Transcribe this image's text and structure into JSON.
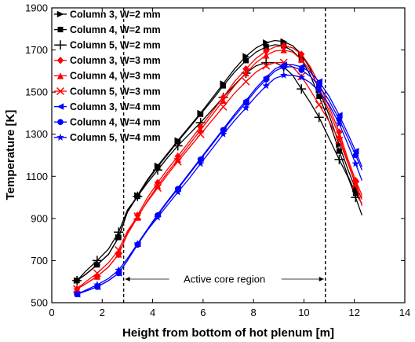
{
  "chart_data": {
    "type": "line",
    "xlabel": "Height from bottom of hot plenum [m]",
    "ylabel": "Temperature [K]",
    "xlim": [
      0,
      14
    ],
    "ylim": [
      500,
      1900
    ],
    "xticks": [
      0,
      2,
      4,
      6,
      8,
      10,
      12,
      14
    ],
    "yticks": [
      500,
      700,
      900,
      1100,
      1300,
      1500,
      1700,
      1900
    ],
    "xtick_labels": [
      "0",
      "2",
      "4",
      "6",
      "8",
      "10",
      "12",
      "14"
    ],
    "ytick_labels": [
      "500",
      "700",
      "900",
      "1100",
      "1300",
      "1500",
      "1700",
      "1900"
    ],
    "grid": false,
    "legend_position": "top-left",
    "x": [
      1.0,
      1.35,
      1.8,
      2.25,
      2.65,
      3.0,
      3.4,
      3.8,
      4.2,
      4.6,
      5.0,
      5.45,
      5.9,
      6.35,
      6.8,
      7.25,
      7.7,
      8.1,
      8.5,
      8.85,
      9.2,
      9.55,
      9.9,
      10.25,
      10.6,
      11.0,
      11.4,
      11.75,
      12.05,
      12.3
    ],
    "series": [
      {
        "name": "Column 3, W=2 mm",
        "color": "#000000",
        "marker": "triangle-right",
        "values": [
          605,
          635,
          680,
          730,
          810,
          930,
          1010,
          1085,
          1150,
          1210,
          1270,
          1335,
          1400,
          1470,
          1540,
          1610,
          1670,
          1710,
          1735,
          1745,
          1740,
          1720,
          1680,
          1610,
          1510,
          1390,
          1250,
          1130,
          1040,
          1000
        ]
      },
      {
        "name": "Column 4, W=2 mm",
        "color": "#000000",
        "marker": "square",
        "values": [
          605,
          635,
          680,
          730,
          810,
          930,
          1005,
          1080,
          1145,
          1205,
          1265,
          1330,
          1395,
          1460,
          1530,
          1595,
          1650,
          1690,
          1715,
          1725,
          1720,
          1695,
          1655,
          1580,
          1480,
          1360,
          1220,
          1100,
          1020,
          970
        ]
      },
      {
        "name": "Column 5, W=2 mm",
        "color": "#000000",
        "marker": "plus",
        "values": [
          605,
          650,
          700,
          755,
          835,
          940,
          1005,
          1070,
          1130,
          1190,
          1245,
          1300,
          1355,
          1415,
          1475,
          1535,
          1590,
          1625,
          1640,
          1640,
          1620,
          1580,
          1515,
          1450,
          1380,
          1280,
          1180,
          1095,
          1000,
          915
        ]
      },
      {
        "name": "Column 3, W=3 mm",
        "color": "#ff0000",
        "marker": "diamond",
        "values": [
          565,
          590,
          625,
          670,
          730,
          830,
          915,
          1000,
          1070,
          1135,
          1195,
          1265,
          1335,
          1405,
          1475,
          1550,
          1610,
          1660,
          1695,
          1715,
          1720,
          1710,
          1680,
          1620,
          1540,
          1430,
          1310,
          1180,
          1080,
          1010
        ]
      },
      {
        "name": "Column 4, W=3 mm",
        "color": "#ff0000",
        "marker": "triangle-up",
        "values": [
          565,
          590,
          625,
          670,
          730,
          825,
          905,
          985,
          1055,
          1120,
          1180,
          1250,
          1320,
          1390,
          1460,
          1530,
          1590,
          1640,
          1675,
          1695,
          1700,
          1690,
          1655,
          1600,
          1520,
          1410,
          1290,
          1165,
          1065,
          990
        ]
      },
      {
        "name": "Column 5, W=3 mm",
        "color": "#ff0000",
        "marker": "x",
        "values": [
          565,
          600,
          640,
          690,
          750,
          840,
          910,
          980,
          1045,
          1110,
          1170,
          1235,
          1300,
          1365,
          1430,
          1495,
          1550,
          1595,
          1625,
          1640,
          1640,
          1620,
          1575,
          1510,
          1440,
          1360,
          1270,
          1160,
          1060,
          960
        ]
      },
      {
        "name": "Column 3, W=4 mm",
        "color": "#0000ff",
        "marker": "triangle-left",
        "values": [
          540,
          555,
          575,
          605,
          640,
          700,
          780,
          850,
          920,
          985,
          1045,
          1115,
          1185,
          1255,
          1325,
          1395,
          1460,
          1520,
          1570,
          1610,
          1630,
          1630,
          1620,
          1595,
          1550,
          1480,
          1390,
          1300,
          1220,
          1145
        ]
      },
      {
        "name": "Column 4, W=4 mm",
        "color": "#0000ff",
        "marker": "circle",
        "values": [
          540,
          555,
          575,
          605,
          640,
          700,
          775,
          845,
          915,
          980,
          1040,
          1110,
          1180,
          1250,
          1320,
          1385,
          1450,
          1510,
          1560,
          1600,
          1620,
          1620,
          1605,
          1575,
          1530,
          1460,
          1370,
          1280,
          1200,
          1130
        ]
      },
      {
        "name": "Column 5, W=4 mm",
        "color": "#0000ff",
        "marker": "star",
        "values": [
          540,
          560,
          585,
          615,
          655,
          710,
          780,
          845,
          905,
          965,
          1025,
          1090,
          1160,
          1230,
          1300,
          1365,
          1425,
          1480,
          1530,
          1565,
          1580,
          1580,
          1570,
          1545,
          1505,
          1440,
          1350,
          1250,
          1160,
          1080
        ]
      }
    ],
    "vlines": [
      2.85,
      10.85
    ],
    "annotation": {
      "text": "Active core region",
      "x_start": 2.85,
      "x_end": 10.85,
      "y": 612
    }
  }
}
